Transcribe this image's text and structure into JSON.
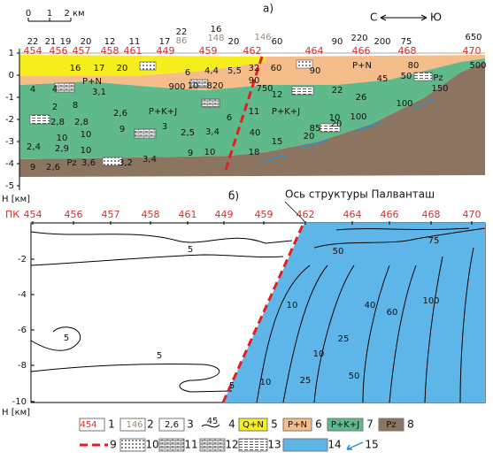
{
  "panel_a": {
    "label": "а)",
    "scale": [
      "0",
      "1",
      "2 км"
    ],
    "direction": {
      "left": "С",
      "right": "Ю"
    },
    "pk": [
      "454",
      "456",
      "457",
      "458",
      "461",
      "449",
      "459",
      "462",
      "464",
      "466",
      "468",
      "470"
    ],
    "stations": [
      "22",
      "21",
      "19",
      "20",
      "12",
      "11",
      "17",
      "22",
      "86",
      "16",
      "148",
      "20",
      "146",
      "60",
      "90",
      "220",
      "200",
      "75",
      "650"
    ],
    "depth_ticks": [
      "1",
      "0",
      "-1",
      "-2",
      "-3",
      "-4",
      "-5"
    ],
    "depth_label": "H [км]",
    "values": [
      "16",
      "17",
      "20",
      "P+N",
      "4",
      "4",
      "3,1",
      "6",
      "4,4",
      "5,5",
      "32",
      "60",
      "90",
      "P+N",
      "80",
      "500",
      "10",
      "900",
      "820",
      "90",
      "750",
      "12",
      "22",
      "45",
      "50",
      "Pz",
      "150",
      "26",
      "2",
      "8",
      "P+K+J",
      "2,6",
      "2,8",
      "2,8",
      "9",
      "3",
      "11",
      "P+K+J",
      "10",
      "100",
      "100",
      "10",
      "10",
      "2,4",
      "2,9",
      "10",
      "2,5",
      "3,4",
      "6",
      "40",
      "20",
      "85",
      "15",
      "20",
      "18",
      "3,2",
      "3,4",
      "9",
      "2,6",
      "Pz",
      "3,6",
      "9",
      "10"
    ]
  },
  "panel_b": {
    "label": "б)",
    "axis_title": "Ось структуры Палванташ",
    "pk_label": "ПК",
    "pk": [
      "454",
      "456",
      "457",
      "458",
      "461",
      "449",
      "459",
      "462",
      "464",
      "466",
      "468",
      "470"
    ],
    "depth_ticks": [
      "-2",
      "-4",
      "-6",
      "-8",
      "-10"
    ],
    "depth_label": "H [км]",
    "contour_labels": [
      "5",
      "5",
      "5",
      "5",
      "10",
      "25",
      "50",
      "75",
      "60",
      "100",
      "40",
      "25",
      "10",
      "50",
      "10"
    ]
  },
  "legend": {
    "symbols": [
      "454",
      "146",
      "2,6",
      "45",
      "Q+N",
      "P+N",
      "P+K+J",
      "Pz"
    ],
    "numbers": [
      "1",
      "2",
      "3",
      "4",
      "5",
      "6",
      "7",
      "8",
      "9",
      "10",
      "11",
      "12",
      "13",
      "14",
      "15"
    ]
  }
}
